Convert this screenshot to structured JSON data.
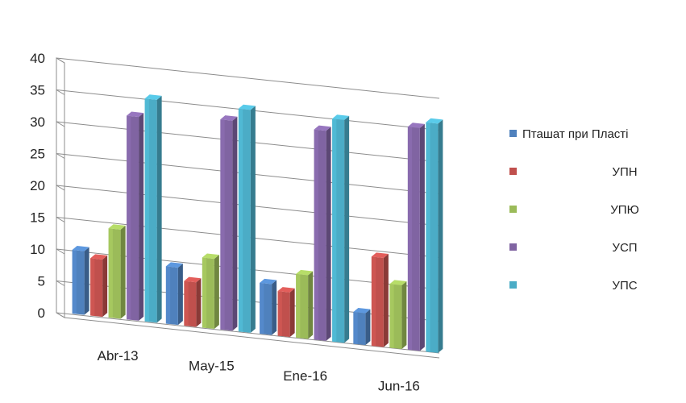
{
  "chart_data": {
    "type": "bar",
    "style": "3d-clustered-column",
    "title": "",
    "xlabel": "",
    "ylabel": "",
    "categories": [
      "Abr-13",
      "May-15",
      "Ene-16",
      "Jun-16"
    ],
    "ylim": [
      0,
      40
    ],
    "yticks": [
      0,
      5,
      10,
      15,
      20,
      25,
      30,
      35,
      40
    ],
    "grid": true,
    "legend_position": "right",
    "series": [
      {
        "name": "Пташат при Пласті",
        "color": "#4F81BD",
        "values": [
          10,
          9,
          8,
          5
        ]
      },
      {
        "name": "УПН",
        "color": "#C0504D",
        "values": [
          9,
          7,
          7,
          14
        ]
      },
      {
        "name": "УПЮ",
        "color": "#9BBB59",
        "values": [
          14,
          11,
          10,
          10
        ]
      },
      {
        "name": "УСП",
        "color": "#8064A2",
        "values": [
          32,
          33,
          33,
          35
        ]
      },
      {
        "name": "УПС",
        "color": "#4BACC6",
        "values": [
          35,
          35,
          35,
          36
        ]
      }
    ]
  }
}
